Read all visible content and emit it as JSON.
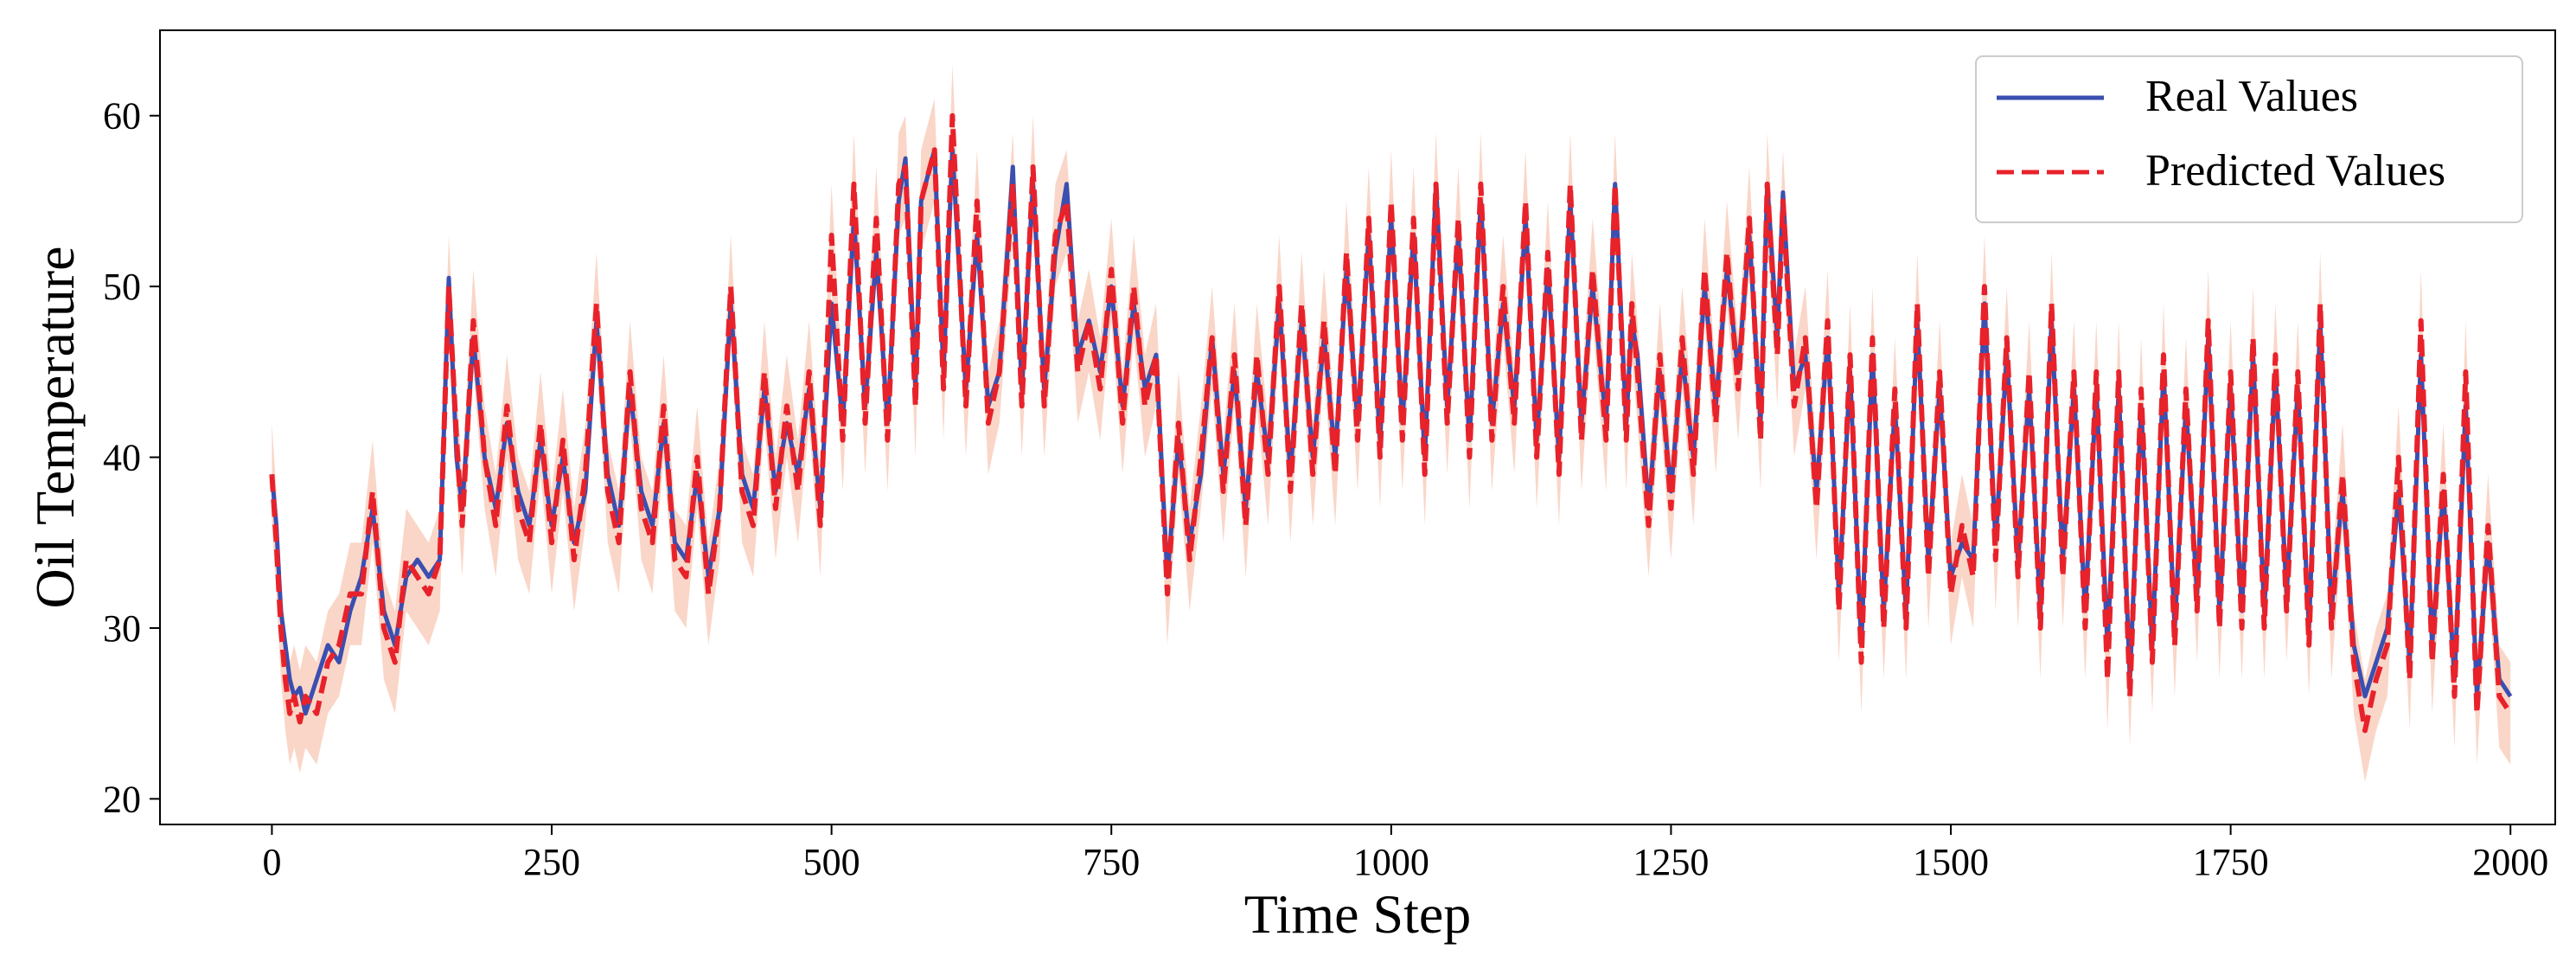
{
  "chart_data": {
    "type": "line",
    "title": "",
    "xlabel": "Time Step",
    "ylabel": "Oil Temperature",
    "xlim": [
      -100,
      2040
    ],
    "ylim": [
      18.5,
      65
    ],
    "x_ticks": [
      0,
      250,
      500,
      750,
      1000,
      1250,
      1500,
      1750,
      2000
    ],
    "x_tick_labels": [
      "0",
      "250",
      "500",
      "750",
      "1000",
      "1250",
      "1500",
      "1750",
      "2000"
    ],
    "y_ticks": [
      20,
      30,
      40,
      50,
      60
    ],
    "y_tick_labels": [
      "20",
      "30",
      "40",
      "50",
      "60"
    ],
    "grid": false,
    "legend": {
      "position": "upper right",
      "entries": [
        "Real Values",
        "Predicted Values"
      ]
    },
    "x": [
      0,
      4,
      8,
      12,
      16,
      20,
      25,
      30,
      40,
      50,
      60,
      70,
      80,
      90,
      100,
      110,
      120,
      130,
      140,
      150,
      158,
      165,
      170,
      180,
      190,
      200,
      210,
      220,
      230,
      240,
      250,
      260,
      270,
      280,
      290,
      300,
      310,
      320,
      330,
      340,
      350,
      360,
      370,
      380,
      390,
      400,
      410,
      420,
      430,
      440,
      450,
      460,
      470,
      480,
      490,
      500,
      510,
      520,
      530,
      540,
      550,
      560,
      566,
      575,
      580,
      592,
      600,
      608,
      620,
      630,
      640,
      650,
      662,
      670,
      680,
      690,
      700,
      710,
      720,
      730,
      740,
      750,
      760,
      770,
      780,
      790,
      800,
      810,
      820,
      830,
      840,
      850,
      860,
      870,
      880,
      890,
      900,
      910,
      920,
      930,
      940,
      950,
      960,
      970,
      980,
      990,
      1000,
      1010,
      1020,
      1030,
      1040,
      1050,
      1060,
      1070,
      1080,
      1090,
      1100,
      1110,
      1120,
      1130,
      1140,
      1150,
      1160,
      1170,
      1180,
      1192,
      1200,
      1210,
      1215,
      1220,
      1230,
      1240,
      1250,
      1260,
      1270,
      1280,
      1290,
      1300,
      1310,
      1320,
      1330,
      1336,
      1345,
      1350,
      1360,
      1370,
      1380,
      1390,
      1400,
      1410,
      1420,
      1430,
      1440,
      1450,
      1460,
      1470,
      1480,
      1490,
      1500,
      1510,
      1520,
      1530,
      1540,
      1550,
      1560,
      1570,
      1580,
      1590,
      1600,
      1610,
      1620,
      1630,
      1640,
      1650,
      1660,
      1670,
      1680,
      1690,
      1700,
      1710,
      1720,
      1730,
      1740,
      1750,
      1760,
      1770,
      1780,
      1790,
      1800,
      1810,
      1820,
      1830,
      1840,
      1850,
      1860,
      1870,
      1880,
      1890,
      1900,
      1910,
      1920,
      1930,
      1940,
      1950,
      1960,
      1970,
      1980,
      1990,
      2000
    ],
    "series": [
      {
        "name": "Real Values",
        "color": "#3a4fb0",
        "style": "solid",
        "values": [
          39,
          36,
          31,
          29,
          27,
          26,
          26.5,
          25,
          27,
          29,
          28,
          31,
          33,
          37,
          31,
          29,
          33,
          34,
          33,
          34,
          50.5,
          40,
          37,
          47,
          40,
          37,
          42,
          38,
          36,
          41,
          36,
          40,
          35,
          38,
          48,
          39,
          36,
          44,
          38,
          36,
          42,
          35,
          34,
          39,
          33,
          37,
          49,
          39,
          37,
          44,
          38,
          42,
          39,
          44,
          37,
          49,
          42,
          54,
          43,
          52,
          42,
          55,
          57.5,
          44,
          55,
          58,
          45,
          58,
          44,
          53,
          43,
          45,
          57,
          44,
          56,
          44,
          52,
          56,
          46,
          48,
          45,
          50,
          43,
          49,
          44,
          46,
          33,
          41,
          35,
          39,
          47,
          39,
          45,
          37,
          45,
          40,
          49,
          39,
          48,
          40,
          47,
          40,
          51,
          42,
          53,
          41,
          54,
          42,
          53,
          40,
          56,
          43,
          53,
          41,
          55,
          42,
          49,
          43,
          54,
          41,
          51,
          40,
          55,
          42,
          50,
          42,
          56,
          42,
          48,
          46,
          37,
          45,
          38,
          46,
          40,
          50,
          43,
          51,
          45,
          53,
          42,
          56,
          47,
          55.5,
          44,
          46,
          38,
          47,
          32,
          45,
          29,
          46,
          31,
          43,
          31,
          48,
          34,
          44,
          33,
          35,
          34,
          49,
          35,
          46,
          34,
          44,
          31,
          48,
          34,
          44,
          31,
          44,
          29,
          44,
          27,
          43,
          29,
          45,
          30,
          43,
          32,
          47,
          31,
          44,
          31,
          46,
          31,
          45,
          32,
          44,
          30,
          48,
          31,
          38,
          29,
          26,
          28,
          30,
          38,
          28,
          46,
          29,
          38,
          27,
          43,
          26,
          35,
          27,
          26
        ]
      },
      {
        "name": "Predicted Values",
        "color": "#e8222a",
        "style": "dashed",
        "values": [
          39,
          35,
          30,
          27,
          25,
          26,
          24.5,
          26,
          25,
          28,
          29,
          32,
          32,
          38,
          30,
          28,
          34,
          33,
          32,
          34,
          50,
          41,
          36,
          48,
          40,
          36,
          43,
          37,
          35,
          42,
          35,
          41,
          34,
          39,
          49,
          38,
          35,
          45,
          37,
          35,
          43,
          34,
          33,
          40,
          32,
          37,
          50,
          38,
          36,
          45,
          37,
          43,
          38,
          45,
          36,
          53,
          41,
          56,
          42,
          54,
          41,
          56,
          57,
          43,
          55,
          58,
          44,
          60,
          43,
          55,
          42,
          45,
          56,
          43,
          57,
          43,
          53,
          55,
          45,
          48,
          44,
          51,
          42,
          50,
          43,
          46,
          32,
          42,
          34,
          40,
          47,
          38,
          46,
          36,
          46,
          39,
          50,
          38,
          49,
          39,
          48,
          39,
          52,
          41,
          54,
          40,
          55,
          41,
          54,
          39,
          56,
          42,
          54,
          40,
          56,
          41,
          50,
          42,
          55,
          40,
          52,
          39,
          56,
          41,
          51,
          41,
          56,
          41,
          49,
          45,
          36,
          46,
          37,
          47,
          39,
          51,
          42,
          52,
          44,
          54,
          41,
          56,
          46,
          55,
          43,
          47,
          37,
          48,
          31,
          46,
          28,
          47,
          30,
          44,
          30,
          49,
          33,
          45,
          32,
          36,
          33,
          50,
          34,
          47,
          33,
          45,
          30,
          49,
          33,
          45,
          30,
          45,
          27,
          45,
          26,
          44,
          28,
          46,
          29,
          44,
          31,
          48,
          30,
          45,
          30,
          47,
          30,
          46,
          31,
          45,
          29,
          49,
          30,
          39,
          28,
          24,
          27,
          29,
          40,
          27,
          48,
          28,
          39,
          26,
          45,
          25,
          36,
          26,
          25
        ]
      }
    ],
    "band": {
      "color": "#f5b59a",
      "opacity": 0.55,
      "halfwidth": 3
    }
  }
}
